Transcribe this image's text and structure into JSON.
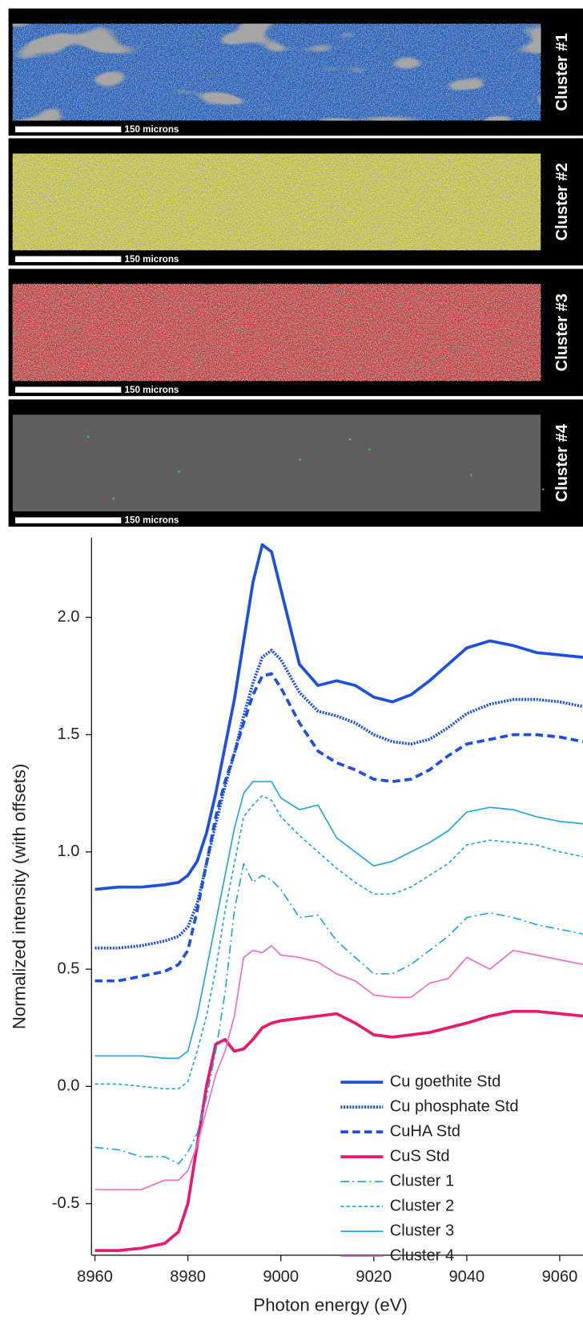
{
  "panels": [
    {
      "label": "Cluster #1",
      "scale_bar": "150 microns"
    },
    {
      "label": "Cluster #2",
      "scale_bar": "150 microns"
    },
    {
      "label": "Cluster #3",
      "scale_bar": "150 microns"
    },
    {
      "label": "Cluster #4",
      "scale_bar": "150 microns"
    }
  ],
  "chart_data": {
    "type": "line",
    "x_label": "Photon energy (eV)",
    "y_label": "Normalized intensity (with offsets)",
    "x": [
      8960,
      8965,
      8970,
      8975,
      8978,
      8980,
      8982,
      8984,
      8986,
      8988,
      8990,
      8992,
      8994,
      8996,
      8998,
      9000,
      9004,
      9008,
      9012,
      9016,
      9020,
      9024,
      9028,
      9032,
      9036,
      9040,
      9045,
      9050,
      9055,
      9060,
      9065
    ],
    "xlim": [
      8960,
      9065
    ],
    "xticks": [
      8960,
      8980,
      9000,
      9020,
      9040,
      9060
    ],
    "ylim": [
      -0.72,
      2.34
    ],
    "yticks": [
      -0.5,
      {
        "value": 0,
        "label": "0.0"
      },
      0.5,
      {
        "value": 1,
        "label": "1.0"
      },
      1.5,
      {
        "value": 2,
        "label": "2.0"
      }
    ],
    "legend": "lower right",
    "series": [
      {
        "name": "Cu goethite Std",
        "color": "#1d4fe0",
        "style": "solid",
        "line_width": 3.5,
        "values": [
          0.84,
          0.85,
          0.85,
          0.86,
          0.87,
          0.9,
          0.96,
          1.08,
          1.25,
          1.45,
          1.65,
          1.9,
          2.15,
          2.31,
          2.28,
          2.12,
          1.8,
          1.71,
          1.73,
          1.71,
          1.66,
          1.64,
          1.67,
          1.73,
          1.8,
          1.87,
          1.9,
          1.88,
          1.85,
          1.84,
          1.83
        ]
      },
      {
        "name": "Cu phosphate Std",
        "color": "#1d4fe0",
        "style": "dotted",
        "line_width": 3.5,
        "values": [
          0.59,
          0.59,
          0.6,
          0.62,
          0.64,
          0.68,
          0.78,
          0.95,
          1.12,
          1.28,
          1.42,
          1.58,
          1.72,
          1.83,
          1.86,
          1.82,
          1.68,
          1.6,
          1.58,
          1.55,
          1.5,
          1.47,
          1.46,
          1.48,
          1.53,
          1.59,
          1.63,
          1.65,
          1.65,
          1.64,
          1.62
        ]
      },
      {
        "name": "CuHA Std",
        "color": "#1d4fe0",
        "style": "dashed",
        "line_width": 3.5,
        "values": [
          0.45,
          0.45,
          0.47,
          0.49,
          0.52,
          0.58,
          0.75,
          0.95,
          1.15,
          1.3,
          1.42,
          1.55,
          1.67,
          1.75,
          1.76,
          1.7,
          1.55,
          1.43,
          1.38,
          1.35,
          1.31,
          1.3,
          1.31,
          1.35,
          1.41,
          1.46,
          1.48,
          1.5,
          1.5,
          1.49,
          1.47
        ]
      },
      {
        "name": "CuS Std",
        "color": "#e8196e",
        "style": "solid",
        "line_width": 3.5,
        "values": [
          -0.7,
          -0.7,
          -0.69,
          -0.67,
          -0.62,
          -0.5,
          -0.25,
          0.0,
          0.18,
          0.2,
          0.15,
          0.16,
          0.2,
          0.25,
          0.27,
          0.28,
          0.29,
          0.3,
          0.31,
          0.27,
          0.22,
          0.21,
          0.22,
          0.23,
          0.25,
          0.27,
          0.3,
          0.32,
          0.32,
          0.31,
          0.3
        ]
      },
      {
        "name": "Cluster 1",
        "color": "#22a8e0",
        "style": "dashdot",
        "line_width": 1.6,
        "values": [
          -0.26,
          -0.27,
          -0.3,
          -0.3,
          -0.33,
          -0.28,
          -0.2,
          -0.05,
          0.15,
          0.4,
          0.75,
          0.95,
          0.87,
          0.9,
          0.88,
          0.84,
          0.72,
          0.73,
          0.62,
          0.55,
          0.48,
          0.48,
          0.52,
          0.58,
          0.64,
          0.72,
          0.74,
          0.72,
          0.69,
          0.67,
          0.65
        ]
      },
      {
        "name": "Cluster 2",
        "color": "#22a8e0",
        "style": "dashed",
        "line_width": 1.6,
        "values": [
          0.01,
          0.01,
          0.0,
          -0.01,
          -0.01,
          0.02,
          0.15,
          0.3,
          0.5,
          0.75,
          0.95,
          1.15,
          1.2,
          1.24,
          1.22,
          1.15,
          1.07,
          1.0,
          0.93,
          0.87,
          0.82,
          0.82,
          0.85,
          0.9,
          0.95,
          1.03,
          1.05,
          1.04,
          1.03,
          1.0,
          0.98
        ]
      },
      {
        "name": "Cluster 3",
        "color": "#22a8e0",
        "style": "solid",
        "line_width": 1.6,
        "values": [
          0.13,
          0.13,
          0.13,
          0.12,
          0.12,
          0.15,
          0.3,
          0.5,
          0.7,
          0.9,
          1.1,
          1.25,
          1.3,
          1.3,
          1.3,
          1.23,
          1.18,
          1.2,
          1.06,
          1.0,
          0.94,
          0.96,
          1.0,
          1.04,
          1.09,
          1.17,
          1.19,
          1.18,
          1.15,
          1.13,
          1.12
        ]
      },
      {
        "name": "Cluster 4",
        "color": "#f06ccc",
        "style": "solid",
        "line_width": 1.6,
        "values": [
          -0.44,
          -0.44,
          -0.44,
          -0.4,
          -0.4,
          -0.36,
          -0.25,
          -0.1,
          0.05,
          0.15,
          0.3,
          0.55,
          0.58,
          0.57,
          0.6,
          0.56,
          0.55,
          0.53,
          0.48,
          0.45,
          0.39,
          0.38,
          0.38,
          0.44,
          0.46,
          0.55,
          0.5,
          0.58,
          0.56,
          0.54,
          0.52
        ]
      }
    ]
  }
}
